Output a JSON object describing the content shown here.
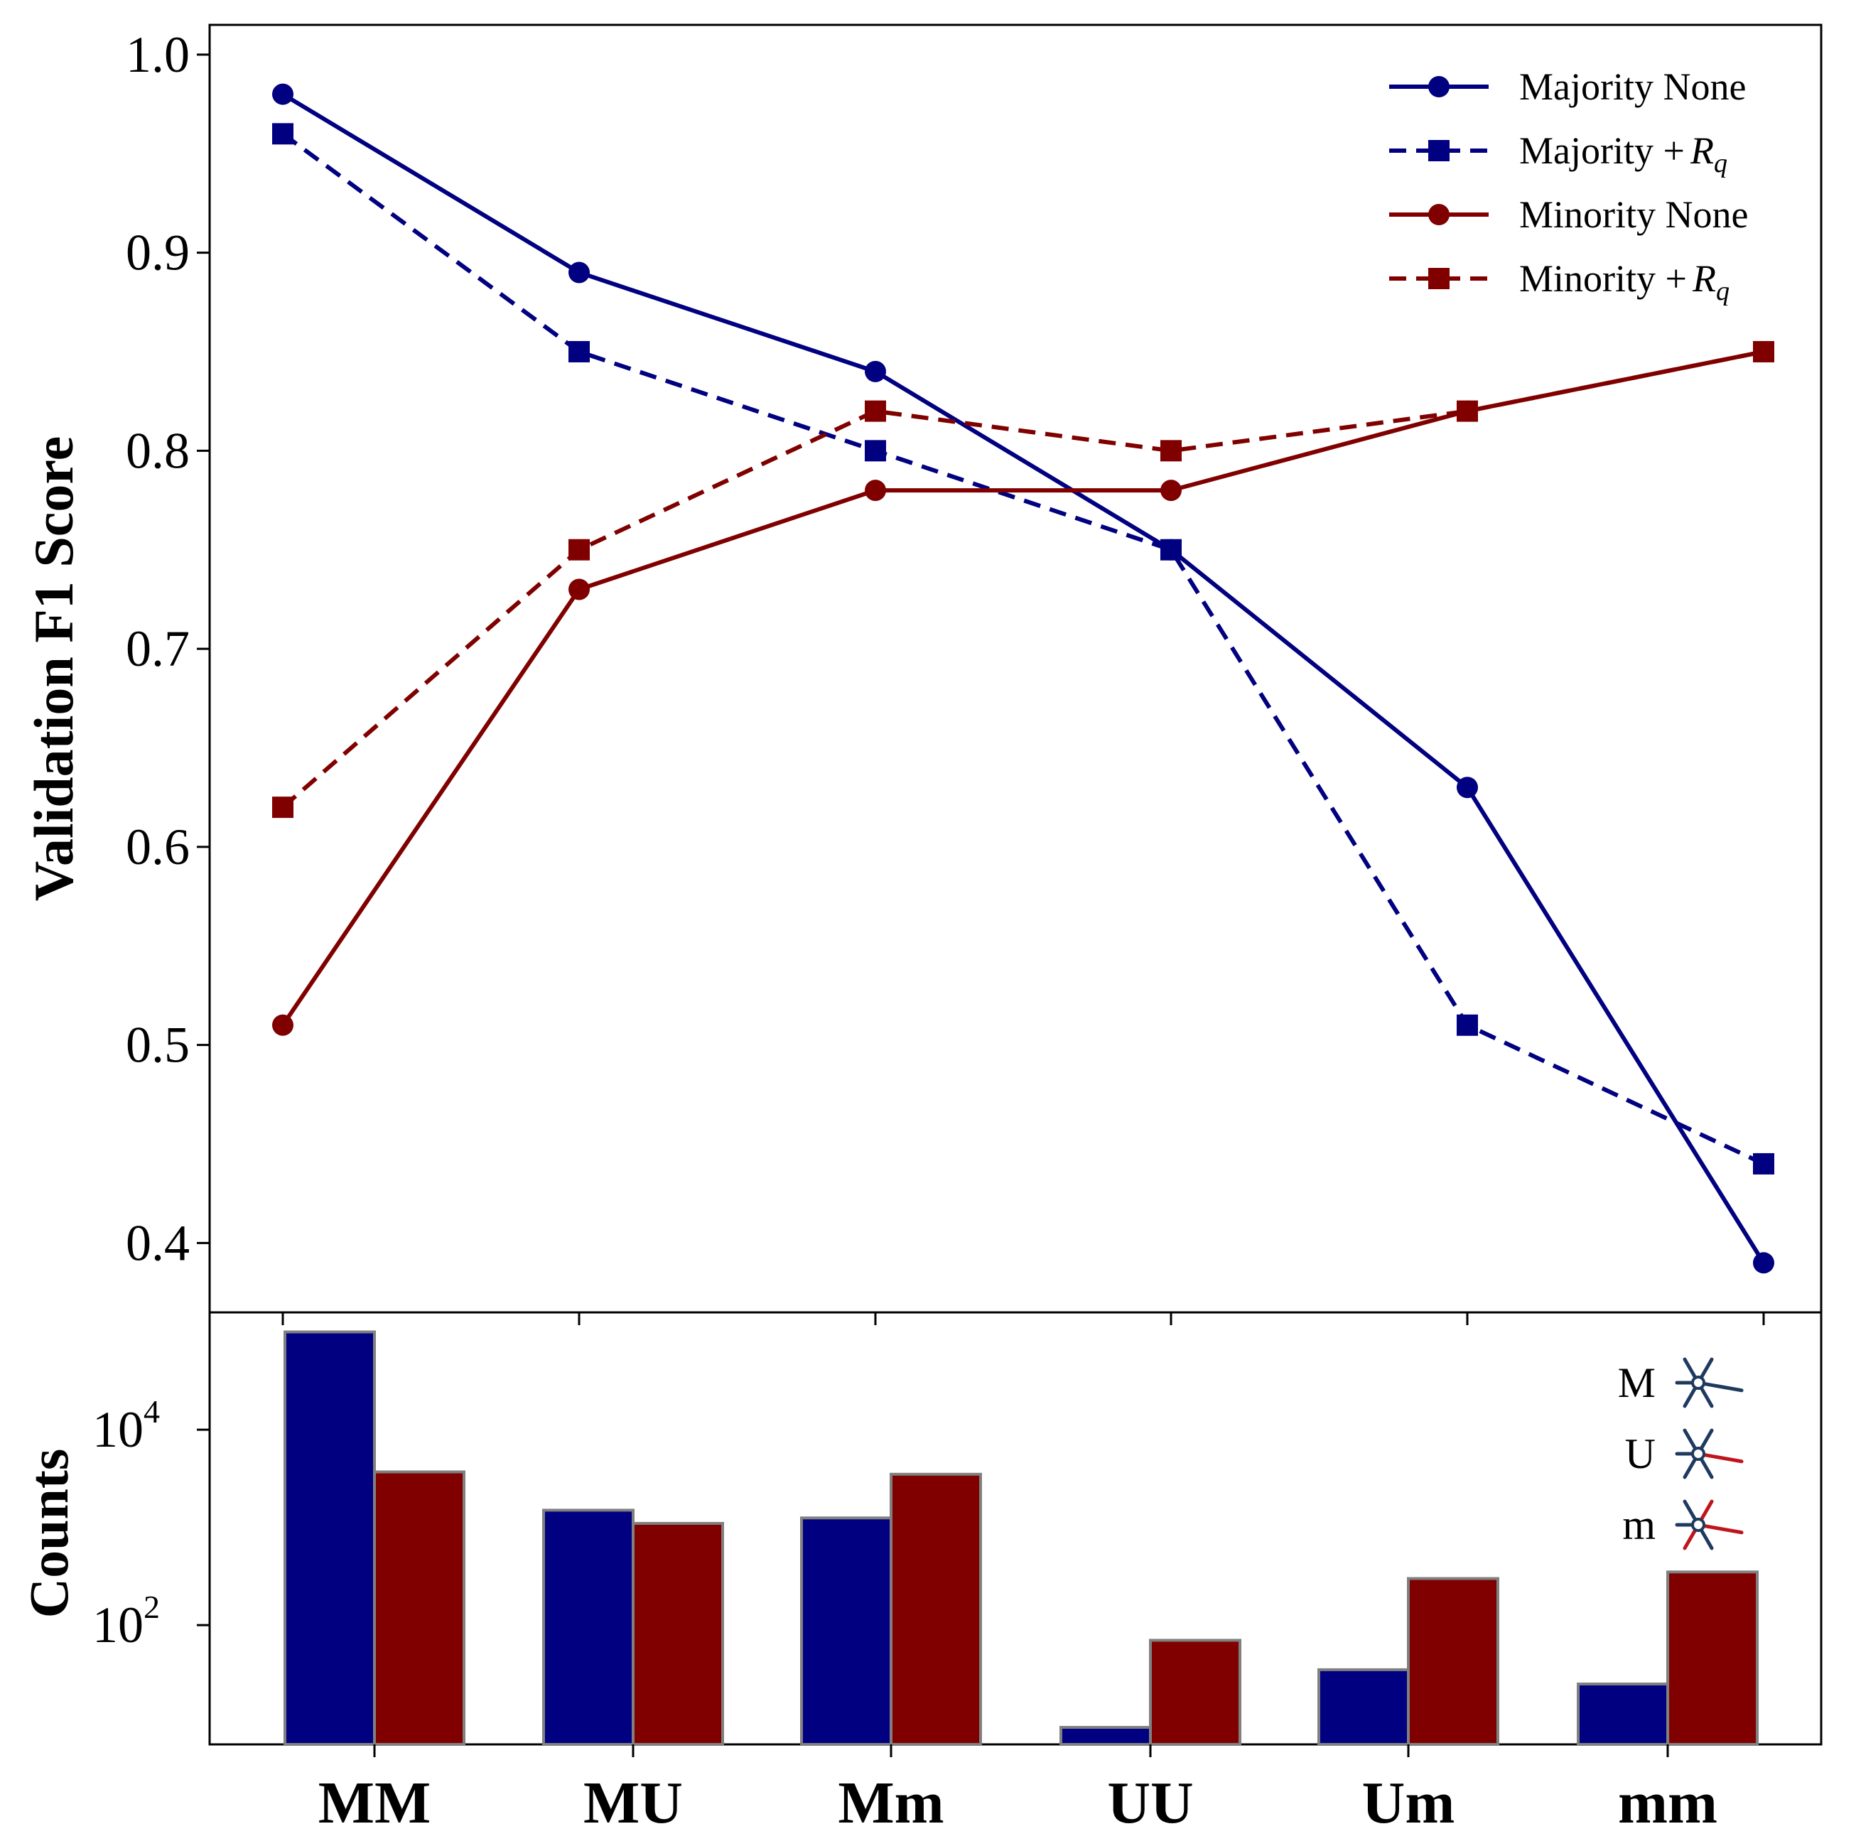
{
  "chart_data": [
    {
      "type": "line",
      "ylabel": "Validation F1 Score",
      "ylim": [
        0.365,
        1.015
      ],
      "yticks": [
        "0.4",
        "0.5",
        "0.6",
        "0.7",
        "0.8",
        "0.9",
        "1.0"
      ],
      "categories": [
        "MM",
        "MU",
        "Mm",
        "UU",
        "Um",
        "mm"
      ],
      "legend_position": "top-right",
      "grid": false,
      "series": [
        {
          "name": "Majority None",
          "color": "#000080",
          "style": "solid",
          "marker": "circle",
          "values": [
            0.98,
            0.89,
            0.84,
            0.75,
            0.63,
            0.39
          ]
        },
        {
          "name": "Majority +Rq",
          "color": "#000080",
          "style": "dashed",
          "marker": "square",
          "values": [
            0.96,
            0.85,
            0.8,
            0.75,
            0.51,
            0.44
          ]
        },
        {
          "name": "Minority None",
          "color": "#800000",
          "style": "solid",
          "marker": "circle",
          "values": [
            0.51,
            0.73,
            0.78,
            0.78,
            0.82,
            0.85
          ]
        },
        {
          "name": "Minority +Rq",
          "color": "#800000",
          "style": "dashed",
          "marker": "square",
          "values": [
            0.62,
            0.75,
            0.82,
            0.8,
            0.82,
            0.85
          ]
        }
      ],
      "legend_labels": [
        {
          "prefix": "Majority None",
          "math": ""
        },
        {
          "prefix": "Majority +",
          "math": "R",
          "sub": "q"
        },
        {
          "prefix": "Minority None",
          "math": ""
        },
        {
          "prefix": "Minority +",
          "math": "R",
          "sub": "q"
        }
      ]
    },
    {
      "type": "bar",
      "ylabel": "Counts",
      "yscale": "log",
      "ylim_log10": [
        0.78,
        5.2
      ],
      "yticks": [
        {
          "base": "10",
          "exp": "2",
          "value": 100
        },
        {
          "base": "10",
          "exp": "4",
          "value": 10000
        }
      ],
      "categories": [
        "MM",
        "MU",
        "Mm",
        "UU",
        "Um",
        "mm"
      ],
      "series": [
        {
          "color": "#000080",
          "values": [
            100000,
            1500,
            1250,
            9,
            35,
            25
          ]
        },
        {
          "color": "#800000",
          "values": [
            3700,
            1100,
            3500,
            70,
            300,
            350
          ]
        }
      ],
      "inset_legend": [
        "M",
        "U",
        "m"
      ]
    }
  ]
}
